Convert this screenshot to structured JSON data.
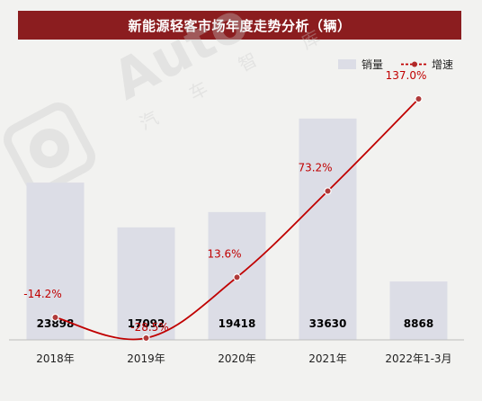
{
  "chart_data": {
    "type": "bar",
    "title": "新能源轻客市场年度走势分析（辆）",
    "categories": [
      "2018年",
      "2019年",
      "2020年",
      "2021年",
      "2022年1-3月"
    ],
    "series": [
      {
        "name": "销量",
        "kind": "bar",
        "values": [
          23898,
          17092,
          19418,
          33630,
          8868
        ],
        "color": "#dcdde6"
      },
      {
        "name": "增速",
        "kind": "line",
        "values": [
          -14.2,
          -28.5,
          13.6,
          73.2,
          137.0
        ],
        "color": "#c00000"
      }
    ],
    "value_labels": [
      "23898",
      "17092",
      "19418",
      "33630",
      "8868"
    ],
    "growth_labels": [
      "-14.2%",
      "-28.5%",
      "13.6%",
      "73.2%",
      "137.0%"
    ],
    "legend_position": "top-right",
    "grid": false
  },
  "watermark": {
    "brand": "Auto",
    "sub_chars": [
      "汽",
      "车",
      "智"
    ],
    "tail_char": "库"
  }
}
